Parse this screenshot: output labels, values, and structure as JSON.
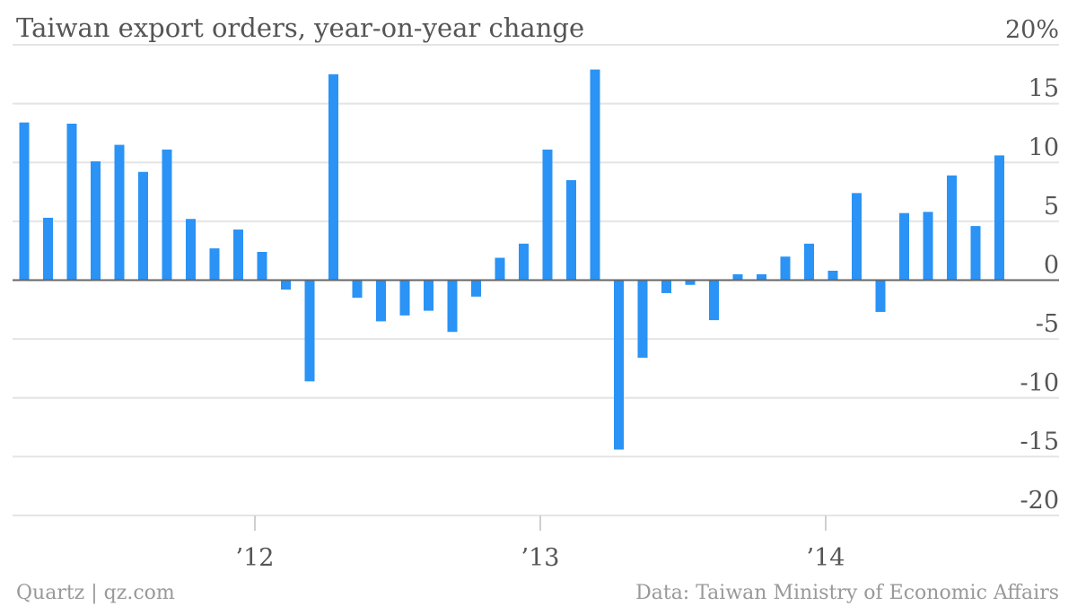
{
  "chart_data": {
    "type": "bar",
    "title": "Taiwan export orders, year-on-year change",
    "yunit": "%",
    "ylim": [
      -20,
      20
    ],
    "yticks": [
      20,
      15,
      10,
      5,
      0,
      -5,
      -10,
      -15,
      -20
    ],
    "ytick_labels": [
      "20%",
      "15",
      "10",
      "5",
      "0",
      "-5",
      "-10",
      "-15",
      "-20"
    ],
    "x_start": "2011-03",
    "xtick_labels": [
      {
        "label": "’12",
        "date": "2012-01"
      },
      {
        "label": "’13",
        "date": "2013-01"
      },
      {
        "label": "’14",
        "date": "2014-01"
      }
    ],
    "grid": true,
    "bar_color": "#2a93f5",
    "series": [
      {
        "values": [
          13.4,
          5.3,
          13.3,
          10.1,
          11.5,
          9.2,
          11.1,
          5.2,
          2.7,
          4.3,
          2.4,
          -0.8,
          -8.6,
          17.5,
          -1.5,
          -3.5,
          -3.0,
          -2.6,
          -4.4,
          -1.4,
          1.9,
          3.1,
          11.1,
          8.5,
          17.9,
          -14.4,
          -6.6,
          -1.1,
          -0.4,
          -3.4,
          0.5,
          0.5,
          2.0,
          3.1,
          0.8,
          7.4,
          -2.7,
          5.7,
          5.8,
          8.9,
          4.6,
          10.6
        ]
      }
    ]
  },
  "footer": {
    "source_left": "Quartz | qz.com",
    "source_right": "Data: Taiwan Ministry of Economic Affairs"
  }
}
